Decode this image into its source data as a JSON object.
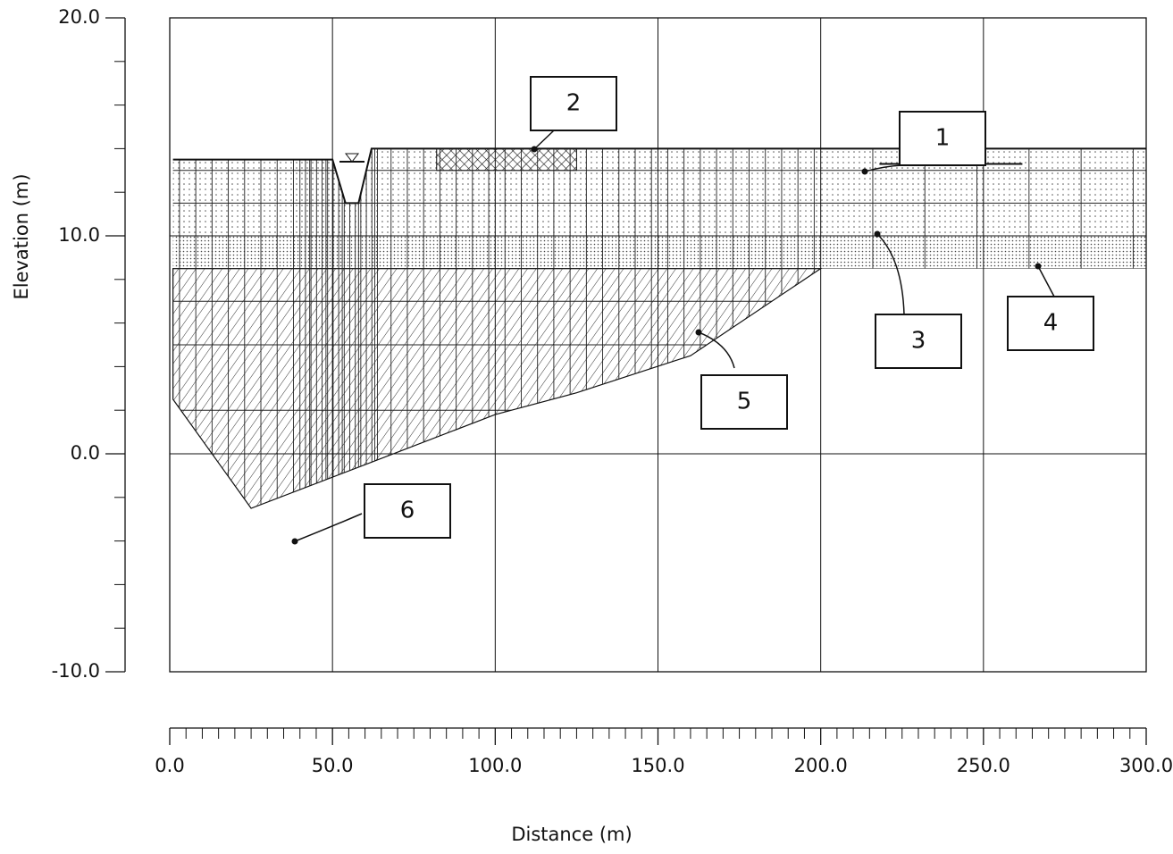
{
  "chart_data": {
    "type": "cross-section",
    "xlabel": "Distance (m)",
    "ylabel": "Elevation (m)",
    "xlim": [
      0,
      300
    ],
    "ylim": [
      -10,
      20
    ],
    "xticks": [
      {
        "value": 0,
        "label": "0.0"
      },
      {
        "value": 50,
        "label": "50.0"
      },
      {
        "value": 100,
        "label": "100.0"
      },
      {
        "value": 150,
        "label": "150.0"
      },
      {
        "value": 200,
        "label": "200.0"
      },
      {
        "value": 250,
        "label": "250.0"
      },
      {
        "value": 300,
        "label": "300.0"
      }
    ],
    "xminorticks": [
      5,
      10,
      15,
      20,
      25,
      30,
      35,
      40,
      45,
      55,
      60,
      65,
      70,
      75,
      80,
      85,
      90,
      95,
      105,
      110,
      115,
      120,
      125,
      130,
      135,
      140,
      145,
      155,
      160,
      165,
      170,
      175,
      180,
      185,
      190,
      195,
      205,
      210,
      215,
      220,
      225,
      230,
      235,
      240,
      245,
      255,
      260,
      265,
      270,
      275,
      280,
      285,
      290,
      295
    ],
    "yticks": [
      {
        "value": -10,
        "label": "-10.0"
      },
      {
        "value": 0,
        "label": "0.0"
      },
      {
        "value": 10,
        "label": "10.0"
      },
      {
        "value": 20,
        "label": "20.0"
      }
    ],
    "yminorticks": [
      -8,
      -6,
      -4,
      -2,
      2,
      4,
      6,
      8,
      12,
      14,
      16,
      18
    ],
    "grid": true,
    "annotations": [
      "1",
      "2",
      "3",
      "4",
      "5",
      "6"
    ]
  }
}
